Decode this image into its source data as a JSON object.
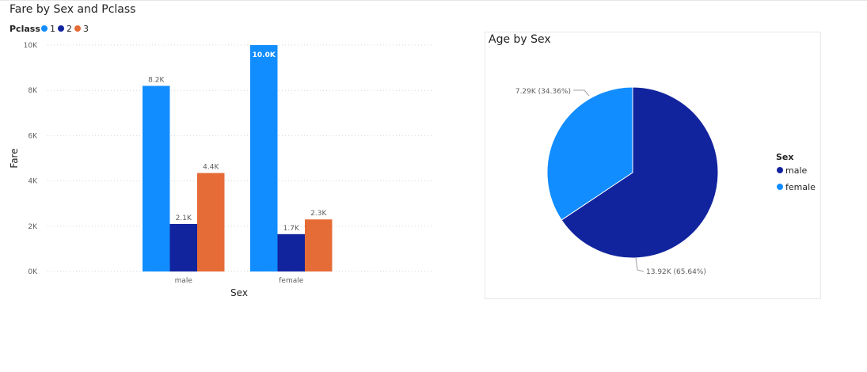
{
  "colors": {
    "pclass1": "#118DFF",
    "pclass2": "#12239E",
    "pclass3": "#E66C37",
    "male": "#12239E",
    "female": "#118DFF"
  },
  "chart_data": [
    {
      "type": "bar",
      "title": "Fare by Sex and Pclass",
      "xlabel": "Sex",
      "ylabel": "Fare",
      "legend_title": "Pclass",
      "legend_placement": "top-left",
      "categories": [
        "male",
        "female"
      ],
      "ylim": [
        0,
        10000
      ],
      "yticks": [
        0,
        2000,
        4000,
        6000,
        8000,
        10000
      ],
      "ytick_labels": [
        "0K",
        "2K",
        "4K",
        "6K",
        "8K",
        "10K"
      ],
      "grid": true,
      "series": [
        {
          "name": "1",
          "values": [
            8200,
            10000
          ],
          "labels": [
            "8.2K",
            "10.0K"
          ]
        },
        {
          "name": "2",
          "values": [
            2100,
            1650
          ],
          "labels": [
            "2.1K",
            "1.7K"
          ]
        },
        {
          "name": "3",
          "values": [
            4350,
            2300
          ],
          "labels": [
            "4.4K",
            "2.3K"
          ]
        }
      ]
    },
    {
      "type": "pie",
      "title": "Age by Sex",
      "legend_title": "Sex",
      "legend_placement": "right",
      "categories": [
        "male",
        "female"
      ],
      "values": [
        13920,
        7290
      ],
      "labels": [
        "13.92K (65.64%)",
        "7.29K (34.36%)"
      ]
    }
  ]
}
